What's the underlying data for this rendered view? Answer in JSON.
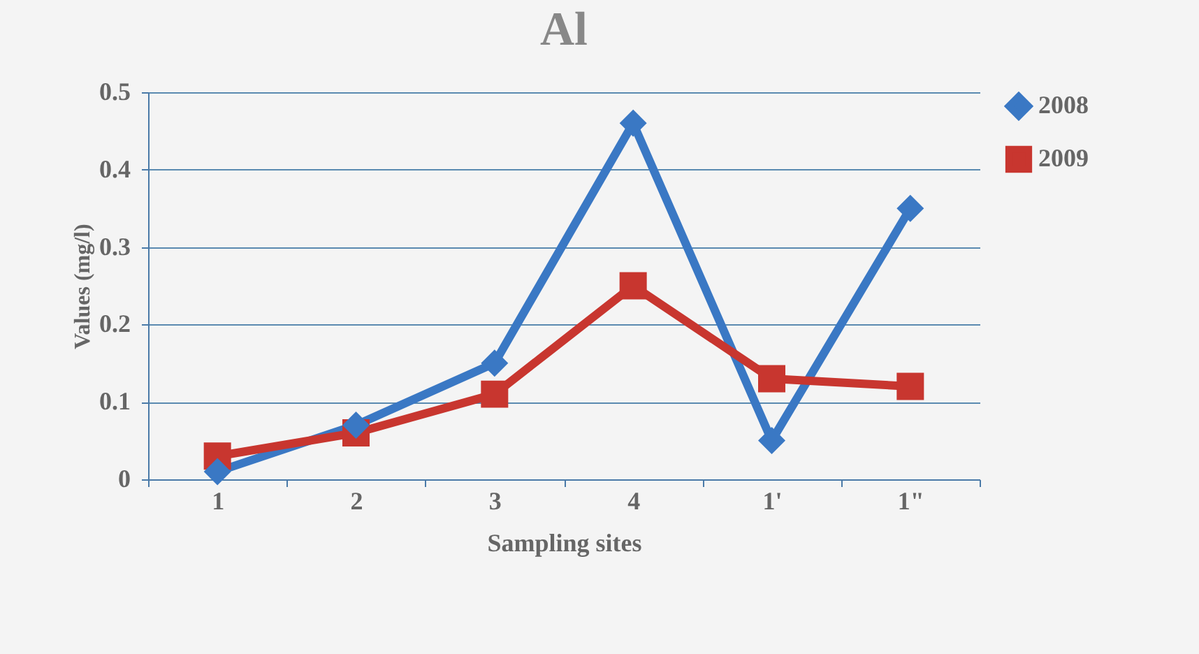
{
  "chart_data": {
    "type": "line",
    "title": "Al",
    "xlabel": "Sampling sites",
    "ylabel": "Values (mg/l)",
    "categories": [
      "1",
      "2",
      "3",
      "4",
      "1'",
      "1\""
    ],
    "series": [
      {
        "name": "2008",
        "color": "#3a78c4",
        "marker": "diamond",
        "values": [
          0.01,
          0.07,
          0.15,
          0.46,
          0.05,
          0.35
        ]
      },
      {
        "name": "2009",
        "color": "#c8362f",
        "marker": "square",
        "values": [
          0.03,
          0.06,
          0.11,
          0.25,
          0.13,
          0.12
        ]
      }
    ],
    "ylim": [
      0,
      0.5
    ],
    "yticks": [
      0,
      0.1,
      0.2,
      0.3,
      0.4,
      0.5
    ],
    "grid": "y",
    "legend": "right",
    "line_style": "solid"
  }
}
